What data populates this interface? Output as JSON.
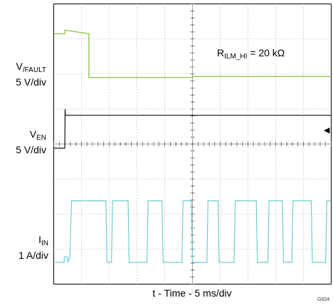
{
  "figure_id": "G024",
  "chart_data": {
    "type": "line",
    "title": "",
    "xlabel": "t - Time - 5 ms/div",
    "ylabel": "",
    "grid": true,
    "x_divisions": 10,
    "y_divisions": 8,
    "time_per_div_ms": 5,
    "annotation": {
      "text_main": "R",
      "text_sub": "ILM_HI",
      "text_tail": " = 20 kΩ"
    },
    "channels": [
      {
        "name_main": "V",
        "name_sub": "/FAULT",
        "scale": "5 V/div",
        "color": "#7cbf2e",
        "x": [
          0,
          2.0,
          2.0,
          6.35,
          6.35,
          25.0,
          25.0,
          50.0
        ],
        "y": [
          7.15,
          7.15,
          7.25,
          7.15,
          5.9,
          5.9,
          5.93,
          5.93
        ]
      },
      {
        "name_main": "V",
        "name_sub": "EN",
        "scale": "5 V/div",
        "color": "#111111",
        "x": [
          0,
          2.0,
          2.05,
          2.1,
          50.0
        ],
        "y": [
          3.88,
          3.88,
          5.0,
          4.82,
          4.82
        ]
      },
      {
        "name_main": "I",
        "name_sub": "IN",
        "scale": "1 A/div",
        "color": "#6ecfcc",
        "x": [
          0,
          1.9,
          1.9,
          2.5,
          2.5,
          2.9,
          3.2,
          9.4,
          9.6,
          10.4,
          10.6,
          13.4,
          13.6,
          16.8,
          17.0,
          19.5,
          19.7,
          23.1,
          23.3,
          24.8,
          25.0,
          27.6,
          27.8,
          29.6,
          29.8,
          32.5,
          32.7,
          36.5,
          36.7,
          38.6,
          38.8,
          41.2,
          41.4,
          42.9,
          43.1,
          46.4,
          46.6,
          49.0,
          49.2,
          50.0
        ],
        "y": [
          0.62,
          0.62,
          0.78,
          0.78,
          0.62,
          0.75,
          2.38,
          2.38,
          0.62,
          0.62,
          2.38,
          2.38,
          0.62,
          0.62,
          2.38,
          2.38,
          0.62,
          0.62,
          2.38,
          2.38,
          0.62,
          0.62,
          2.38,
          2.38,
          0.62,
          0.62,
          2.38,
          2.38,
          0.62,
          0.62,
          2.38,
          2.38,
          0.62,
          0.62,
          2.38,
          2.38,
          0.62,
          0.62,
          2.38,
          2.38
        ]
      }
    ]
  }
}
